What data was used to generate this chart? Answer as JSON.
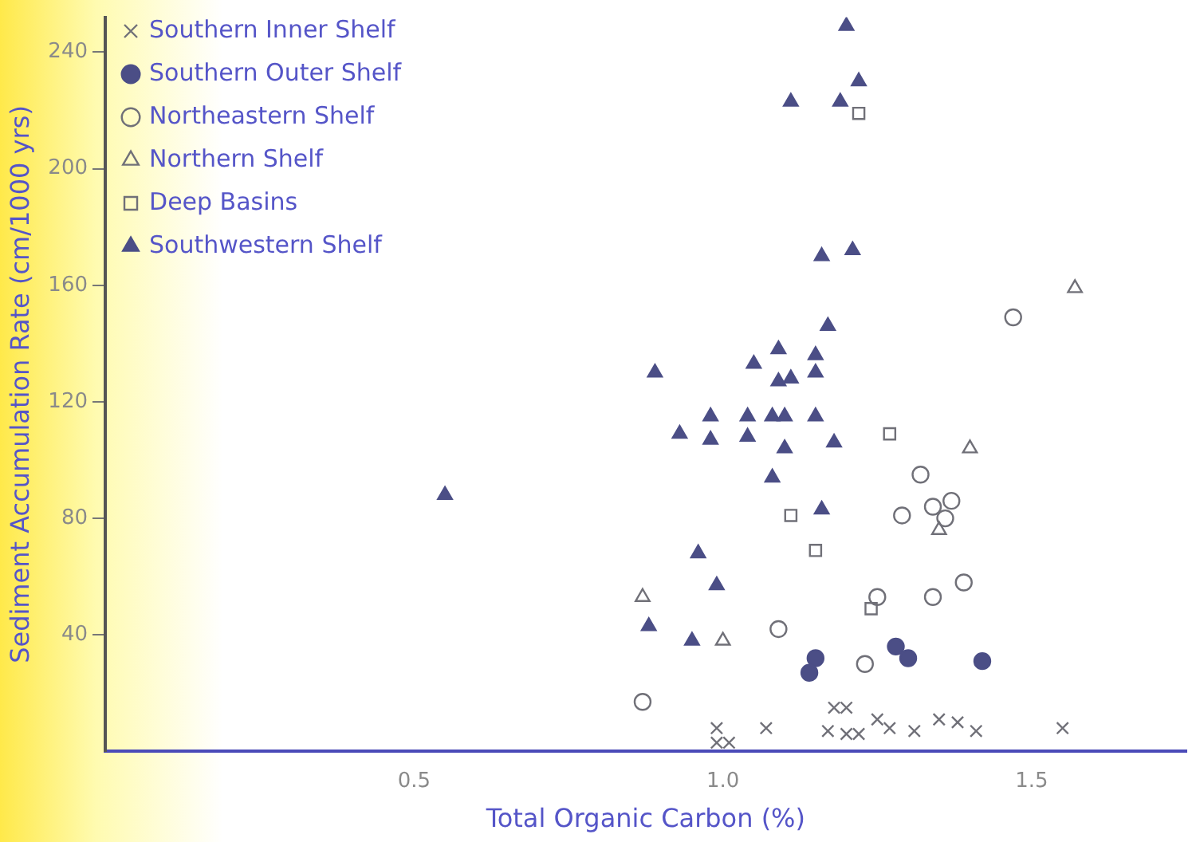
{
  "chart_data": {
    "type": "scatter",
    "xlabel": "Total Organic Carbon (%)",
    "ylabel": "Sediment Accumulation Rate (cm/1000 yrs)",
    "xlim": [
      0,
      1.75
    ],
    "xticks": [
      0.5,
      {
        "value": 1,
        "label": "1.0"
      },
      1.5
    ],
    "ylim": [
      0,
      252
    ],
    "yticks": [
      40,
      80,
      120,
      160,
      200,
      240
    ],
    "grid": false,
    "legend": "top left",
    "series": [
      {
        "name": "Southern Inner Shelf",
        "color": "#707078",
        "marker": "cross",
        "x": [
          0.99,
          0.99,
          1.01,
          1.07,
          1.18,
          1.2,
          1.17,
          1.2,
          1.22,
          1.25,
          1.27,
          1.31,
          1.35,
          1.38,
          1.41,
          1.55
        ],
        "values": [
          8,
          3,
          3,
          8,
          15,
          15,
          7,
          6,
          6,
          11,
          8,
          7,
          11,
          10,
          7,
          8
        ]
      },
      {
        "name": "Southern Outer Shelf",
        "color": "#4b4e86",
        "marker": "circle",
        "x": [
          1.15,
          1.14,
          1.28,
          1.3,
          1.42
        ],
        "values": [
          32,
          27,
          36,
          32,
          31
        ]
      },
      {
        "name": "Northeastern Shelf",
        "color": "#707078",
        "marker": "circle",
        "x": [
          0.87,
          1.09,
          1.23,
          1.25,
          1.34,
          1.39,
          1.29,
          1.32,
          1.34,
          1.37,
          1.36,
          1.47
        ],
        "values": [
          17,
          42,
          30,
          53,
          53,
          58,
          81,
          95,
          84,
          86,
          80,
          149
        ]
      },
      {
        "name": "Northern Shelf",
        "color": "#707078",
        "marker": "triangle",
        "x": [
          0.87,
          1.0,
          1.35,
          1.4,
          1.57
        ],
        "values": [
          53,
          38,
          76,
          104,
          159
        ]
      },
      {
        "name": "Deep Basins",
        "color": "#707078",
        "marker": "square",
        "x": [
          1.22,
          1.27,
          1.11,
          1.15,
          1.24
        ],
        "values": [
          219,
          109,
          81,
          69,
          49
        ]
      },
      {
        "name": "Southwestern Shelf",
        "color": "#4b4e86",
        "marker": "triangle",
        "x": [
          0.55,
          1.2,
          1.22,
          1.11,
          1.19,
          1.16,
          1.21,
          1.17,
          1.09,
          1.05,
          1.15,
          1.09,
          1.11,
          1.15,
          0.89,
          0.93,
          0.98,
          0.98,
          1.04,
          1.04,
          1.08,
          1.1,
          1.15,
          1.1,
          1.18,
          1.08,
          1.16,
          0.96,
          0.99,
          0.88,
          0.95
        ],
        "values": [
          88,
          249,
          230,
          223,
          223,
          170,
          172,
          146,
          138,
          133,
          136,
          127,
          128,
          130,
          130,
          109,
          115,
          107,
          115,
          108,
          115,
          115,
          115,
          104,
          106,
          94,
          83,
          68,
          57,
          43,
          38
        ]
      }
    ]
  }
}
